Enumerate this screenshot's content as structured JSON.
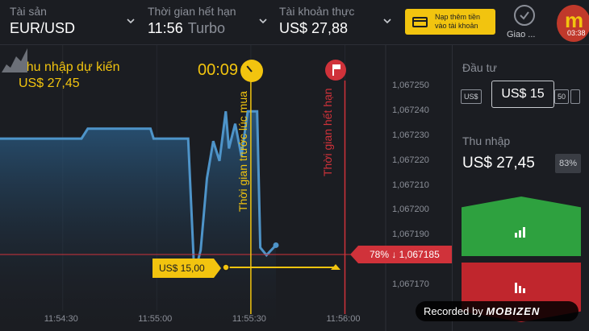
{
  "header": {
    "asset": {
      "label": "Tài sản",
      "value": "EUR/USD"
    },
    "expiry": {
      "label": "Thời gian hết hạn",
      "value": "11:56",
      "mode": "Turbo"
    },
    "account": {
      "label": "Tài khoản thực",
      "value": "US$ 27,88"
    },
    "deposit_button": {
      "line1": "Nạp thêm tiền",
      "line2": "vào tài khoản"
    },
    "trades_button": {
      "label": "Giao ..."
    },
    "recorder": {
      "letter": "m",
      "time": "03:38"
    }
  },
  "chart": {
    "expected_income_label": "Thu nhập dự kiến",
    "expected_income_value": "US$ 27,45",
    "timer": "00:09",
    "buy_deadline_label": "Thời gian trước lúc mua",
    "expiry_line_label": "Thời gian hết hạn",
    "current_price_tag": "78% ↓ 1,067185",
    "investment_tag": "US$ 15,00",
    "y_ticks": [
      "1,067250",
      "1,067240",
      "1,067230",
      "1,067220",
      "1,067210",
      "1,067200",
      "1,067190",
      "1,067180",
      "1,067170"
    ],
    "x_ticks": [
      "11:54:30",
      "11:55:00",
      "11:55:30",
      "11:56:00"
    ],
    "colors": {
      "line": "#4e94c9",
      "buy_line": "#f2c40f",
      "expiry_line": "#d0323a"
    }
  },
  "chart_data": {
    "type": "line",
    "x_ticks": [
      "11:54:30",
      "11:55:00",
      "11:55:30",
      "11:56:00"
    ],
    "y_ticks": [
      1.06725,
      1.06724,
      1.06723,
      1.06722,
      1.06721,
      1.0672,
      1.06719,
      1.06718,
      1.06717
    ],
    "ylim": [
      1.067166,
      1.067256
    ],
    "xlim": [
      "11:54:10",
      "11:56:13"
    ],
    "series": [
      {
        "values": [
          [
            "11:54:10",
            1.067229
          ],
          [
            "11:54:36",
            1.067229
          ],
          [
            "11:54:38",
            1.067233
          ],
          [
            "11:54:58",
            1.067233
          ],
          [
            "11:54:59",
            1.067229
          ],
          [
            "11:55:10",
            1.067229
          ],
          [
            "11:55:12",
            1.067174
          ],
          [
            "11:55:14",
            1.067184
          ],
          [
            "11:55:16",
            1.067213
          ],
          [
            "11:55:18",
            1.067228
          ],
          [
            "11:55:20",
            1.06722
          ],
          [
            "11:55:22",
            1.06724
          ],
          [
            "11:55:23",
            1.067225
          ],
          [
            "11:55:25",
            1.067235
          ],
          [
            "11:55:27",
            1.067222
          ],
          [
            "11:55:29",
            1.06724
          ],
          [
            "11:55:32",
            1.06724
          ],
          [
            "11:55:33",
            1.067185
          ],
          [
            "11:55:35",
            1.067182
          ],
          [
            "11:55:38",
            1.067186
          ]
        ]
      }
    ],
    "grid": false
  },
  "panel": {
    "invest_label": "Đầu tư",
    "invest_value": "US$ 15",
    "ghost_left": "US$",
    "ghost_right": "50",
    "income_label": "Thu nhập",
    "income_value": "US$ 27,45",
    "payout_percent": "83%"
  },
  "watermark": {
    "text": "Recorded by",
    "brand": "MOBIZEN"
  }
}
